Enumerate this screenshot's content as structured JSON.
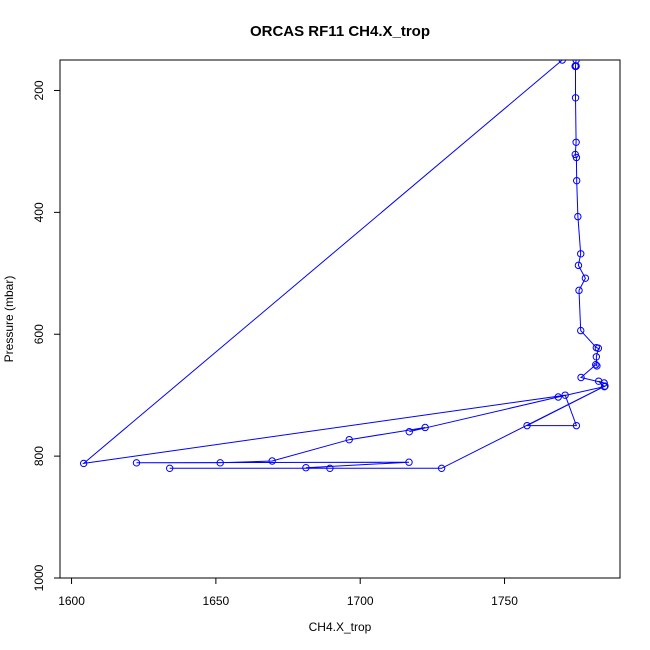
{
  "chart_data": {
    "type": "line",
    "title": "ORCAS RF11 CH4.X_trop",
    "xlabel": "CH4.X_trop",
    "ylabel": "Pressure (mbar)",
    "xlim": [
      1596,
      1790
    ],
    "ylim": [
      1000,
      150
    ],
    "y_inverted": true,
    "x_ticks": [
      1600,
      1650,
      1700,
      1750
    ],
    "y_ticks": [
      200,
      400,
      600,
      800,
      1000
    ],
    "grid": false,
    "marker": "open-circle",
    "series": [
      {
        "color": "#0000ff",
        "points": [
          [
            1774.8,
            150
          ],
          [
            1774.6,
            160
          ],
          [
            1774.7,
            160
          ],
          [
            1774.5,
            160
          ],
          [
            1774.6,
            160
          ],
          [
            1774.7,
            160
          ],
          [
            1774.5,
            160
          ],
          [
            1774.6,
            160
          ],
          [
            1774.7,
            160
          ],
          [
            1774.5,
            160
          ],
          [
            1774.8,
            160
          ],
          [
            1774.6,
            160
          ],
          [
            1774.7,
            160
          ],
          [
            1774.6,
            160
          ],
          [
            1774.6,
            212
          ],
          [
            1774.8,
            285
          ],
          [
            1774.5,
            305
          ],
          [
            1774.9,
            310
          ],
          [
            1775.0,
            348
          ],
          [
            1775.4,
            407
          ],
          [
            1776.4,
            468
          ],
          [
            1775.6,
            487
          ],
          [
            1778.0,
            508
          ],
          [
            1775.8,
            528
          ],
          [
            1776.4,
            594
          ],
          [
            1781.8,
            622
          ],
          [
            1782.5,
            623
          ],
          [
            1781.8,
            637
          ],
          [
            1782.0,
            652
          ],
          [
            1781.6,
            650
          ],
          [
            1776.5,
            671
          ],
          [
            1784.5,
            680
          ],
          [
            1782.6,
            677
          ],
          [
            1784.6,
            686
          ],
          [
            1768.6,
            703
          ],
          [
            1717.0,
            760
          ],
          [
            1722.5,
            753
          ],
          [
            1696.2,
            773
          ],
          [
            1669.5,
            808
          ],
          [
            1651.5,
            811
          ],
          [
            1622.5,
            811
          ],
          [
            1716.9,
            810
          ],
          [
            1681.2,
            819
          ],
          [
            1689.5,
            820
          ],
          [
            1634.0,
            820
          ],
          [
            1728.2,
            820
          ],
          [
            1784.8,
            685
          ],
          [
            1757.8,
            750
          ],
          [
            1774.9,
            750
          ],
          [
            1771.0,
            700
          ],
          [
            1604.2,
            812
          ],
          [
            1770.0,
            150
          ]
        ]
      }
    ]
  }
}
